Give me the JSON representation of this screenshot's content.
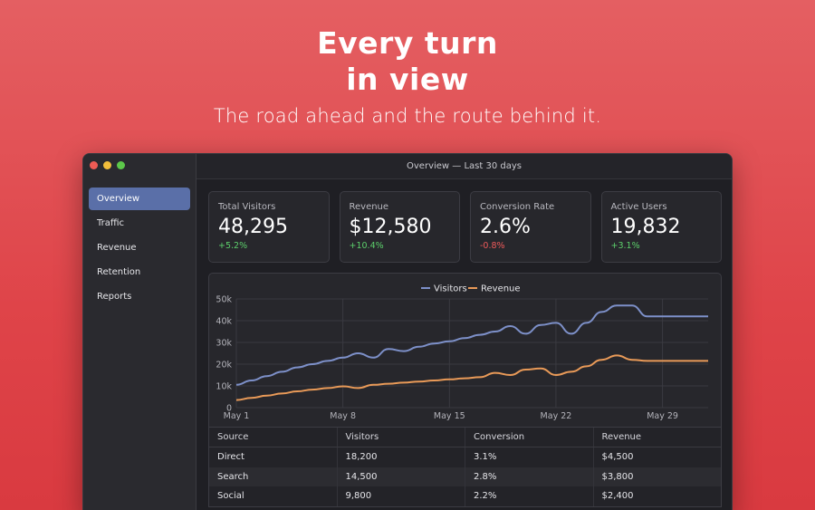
{
  "hero": {
    "title_line1": "Every turn",
    "title_line2": "in view",
    "subtitle": "The road ahead and the route behind it."
  },
  "window": {
    "title": "Overview — Last 30 days"
  },
  "sidebar": {
    "items": [
      {
        "label": "Overview",
        "active": true
      },
      {
        "label": "Traffic"
      },
      {
        "label": "Revenue"
      },
      {
        "label": "Retention"
      },
      {
        "label": "Reports"
      }
    ]
  },
  "kpis": [
    {
      "label": "Total Visitors",
      "value": "48,295",
      "delta": "+5.2%",
      "trend": "up"
    },
    {
      "label": "Revenue",
      "value": "$12,580",
      "delta": "+10.4%",
      "trend": "up"
    },
    {
      "label": "Conversion Rate",
      "value": "2.6%",
      "delta": "-0.8%",
      "trend": "down"
    },
    {
      "label": "Active Users",
      "value": "19,832",
      "delta": "+3.1%",
      "trend": "up"
    }
  ],
  "chart_data": {
    "type": "line",
    "x": [
      "May 1",
      "May 2",
      "May 3",
      "May 4",
      "May 5",
      "May 6",
      "May 7",
      "May 8",
      "May 9",
      "May 10",
      "May 11",
      "May 12",
      "May 13",
      "May 14",
      "May 15",
      "May 16",
      "May 17",
      "May 18",
      "May 19",
      "May 20",
      "May 21",
      "May 22",
      "May 23",
      "May 24",
      "May 25",
      "May 26",
      "May 27",
      "May 28",
      "May 29",
      "May 30",
      "May 31",
      "Jun 1"
    ],
    "xticks": [
      "May 1",
      "May 8",
      "May 15",
      "May 22",
      "May 29"
    ],
    "yticks": [
      "0",
      "10k",
      "20k",
      "30k",
      "40k",
      "50k"
    ],
    "ylim": [
      0,
      50000
    ],
    "grid": true,
    "legend": "top-center",
    "series": [
      {
        "name": "Visitors",
        "color": "#7d90c9",
        "values": [
          10500,
          12500,
          14500,
          16500,
          18500,
          20000,
          21500,
          23000,
          25000,
          23000,
          27000,
          26000,
          28000,
          29500,
          30500,
          32000,
          33500,
          35000,
          37500,
          34000,
          38000,
          39000,
          34000,
          39000,
          44000,
          47000,
          47000,
          42000,
          42000,
          42000,
          42000,
          42000
        ]
      },
      {
        "name": "Revenue",
        "color": "#e99a58",
        "values": [
          3500,
          4500,
          5500,
          6500,
          7500,
          8300,
          9000,
          9800,
          9000,
          10500,
          11000,
          11500,
          12000,
          12500,
          13000,
          13500,
          14000,
          16000,
          15000,
          17500,
          18000,
          15000,
          16500,
          19000,
          22000,
          24000,
          22000,
          21500,
          21500,
          21500,
          21500,
          21500
        ]
      }
    ]
  },
  "table": {
    "headers": [
      "Source",
      "Visitors",
      "Conversion",
      "Revenue"
    ],
    "rows": [
      [
        "Direct",
        "18,200",
        "3.1%",
        "$4,500"
      ],
      [
        "Search",
        "14,500",
        "2.8%",
        "$3,800"
      ],
      [
        "Social",
        "9,800",
        "2.2%",
        "$2,400"
      ]
    ]
  }
}
